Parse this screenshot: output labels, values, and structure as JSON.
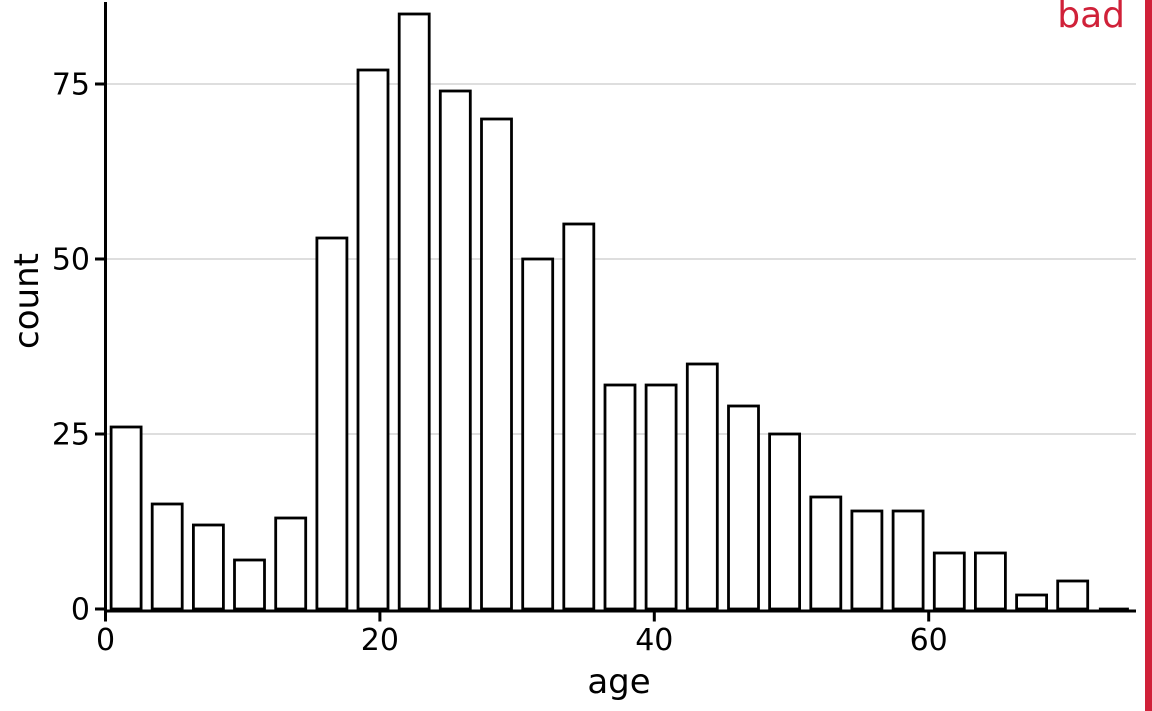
{
  "figure": {
    "background": "#ffffff"
  },
  "annotation": {
    "label": "bad",
    "color": "#d02139",
    "stripe_color": "#d02139"
  },
  "chart_data": {
    "type": "bar",
    "variant": "histogram",
    "title": "",
    "xlabel": "age",
    "ylabel": "count",
    "bin_width": 3,
    "bin_starts": [
      0,
      3,
      6,
      9,
      12,
      15,
      18,
      21,
      24,
      27,
      30,
      33,
      36,
      39,
      42,
      45,
      48,
      51,
      54,
      57,
      60,
      63,
      66,
      69,
      72
    ],
    "counts": [
      26,
      15,
      12,
      7,
      13,
      53,
      77,
      85,
      74,
      70,
      50,
      55,
      32,
      32,
      35,
      29,
      25,
      16,
      14,
      14,
      8,
      8,
      2,
      4,
      0
    ],
    "x_ticks": [
      0,
      20,
      40,
      60
    ],
    "y_ticks": [
      0,
      25,
      50,
      75
    ],
    "xlim": [
      0,
      75
    ],
    "ylim": [
      0,
      86
    ],
    "grid": {
      "horizontal": true,
      "vertical": false,
      "color": "#dedede"
    },
    "legend": "none",
    "styles": {
      "bar_fill": "#ffffff",
      "bar_stroke": "#000000",
      "axis_color": "#000000",
      "text_color": "#000000",
      "relative_bar_width": 0.73
    }
  }
}
